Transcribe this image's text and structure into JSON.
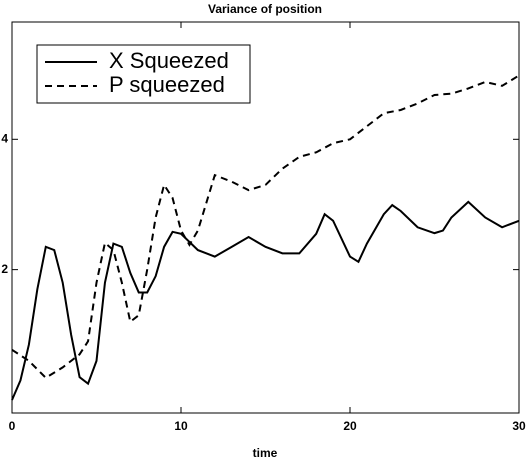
{
  "chart_data": {
    "type": "line",
    "title": "Variance of position",
    "xlabel": "time",
    "xlim": [
      0,
      30
    ],
    "xticks": [
      0,
      10,
      20,
      30
    ],
    "ylim": [
      -0.2,
      5.8
    ],
    "yticks": [
      2,
      4
    ],
    "legend": "upper left",
    "series": [
      {
        "name": "X Squeezed",
        "color": "#000000",
        "dash": "solid",
        "x": [
          0,
          0.5,
          1,
          1.5,
          2,
          2.5,
          3,
          3.5,
          4,
          4.5,
          5,
          5.5,
          6,
          6.5,
          7,
          7.5,
          8,
          8.5,
          9,
          9.5,
          10,
          11,
          12,
          13,
          14,
          15,
          16,
          17,
          18,
          18.5,
          19,
          20,
          20.5,
          21,
          22,
          22.5,
          23,
          24,
          25,
          25.5,
          26,
          27,
          28,
          29,
          30
        ],
        "values": [
          0.0,
          0.3,
          0.85,
          1.7,
          2.35,
          2.3,
          1.8,
          1.0,
          0.35,
          0.25,
          0.6,
          1.8,
          2.4,
          2.35,
          1.95,
          1.65,
          1.65,
          1.9,
          2.35,
          2.58,
          2.55,
          2.3,
          2.2,
          2.35,
          2.5,
          2.35,
          2.25,
          2.25,
          2.55,
          2.85,
          2.75,
          2.2,
          2.12,
          2.4,
          2.85,
          2.99,
          2.9,
          2.65,
          2.56,
          2.6,
          2.8,
          3.04,
          2.8,
          2.65,
          2.75
        ]
      },
      {
        "name": "P squeezed",
        "color": "#000000",
        "dash": "dashed",
        "x": [
          0,
          1,
          2,
          3,
          4,
          4.5,
          5,
          5.5,
          6,
          6.5,
          7,
          7.5,
          8,
          8.5,
          9,
          9.5,
          10,
          10.5,
          11,
          12,
          13,
          14,
          15,
          16,
          17,
          18,
          19,
          20,
          21,
          22,
          23,
          24,
          25,
          26,
          27,
          28,
          29,
          30
        ],
        "values": [
          0.77,
          0.6,
          0.34,
          0.5,
          0.7,
          0.9,
          1.8,
          2.41,
          2.3,
          1.8,
          1.2,
          1.3,
          2.0,
          2.8,
          3.3,
          3.1,
          2.6,
          2.38,
          2.6,
          3.45,
          3.35,
          3.22,
          3.3,
          3.55,
          3.73,
          3.8,
          3.94,
          4.0,
          4.2,
          4.4,
          4.45,
          4.55,
          4.68,
          4.7,
          4.78,
          4.88,
          4.82,
          4.98
        ]
      }
    ]
  }
}
